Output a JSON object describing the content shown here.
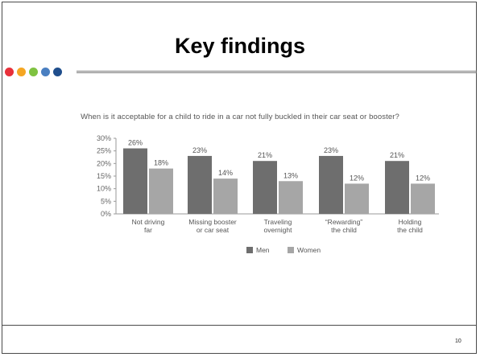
{
  "slide": {
    "title": "Key findings",
    "page_number": "10"
  },
  "decoration": {
    "dot_colors": [
      "#e8303a",
      "#f5a623",
      "#7fc241",
      "#4a7fc1",
      "#1f4e8c"
    ]
  },
  "chart_data": {
    "type": "bar",
    "title": "When is it acceptable for a child to ride in a car not fully buckled in their car seat or booster?",
    "categories": [
      [
        "Not driving",
        "far"
      ],
      [
        "Missing booster",
        "or car seat"
      ],
      [
        "Traveling",
        "overnight"
      ],
      [
        "“Rewarding”",
        "the child"
      ],
      [
        "Holding",
        "the child"
      ]
    ],
    "series": [
      {
        "name": "Men",
        "values": [
          26,
          23,
          21,
          23,
          21
        ],
        "labels": [
          "26%",
          "23%",
          "21%",
          "23%",
          "21%"
        ],
        "color": "#6e6e6e"
      },
      {
        "name": "Women",
        "values": [
          18,
          14,
          13,
          12,
          12
        ],
        "labels": [
          "18%",
          "14%",
          "13%",
          "12%",
          "12%"
        ],
        "color": "#a6a6a6"
      }
    ],
    "y_ticks": [
      "30%",
      "25%",
      "20%",
      "15%",
      "10%",
      "5%",
      "0%"
    ],
    "ylim": [
      0,
      30
    ],
    "grid": false,
    "legend": "bottom-center"
  }
}
